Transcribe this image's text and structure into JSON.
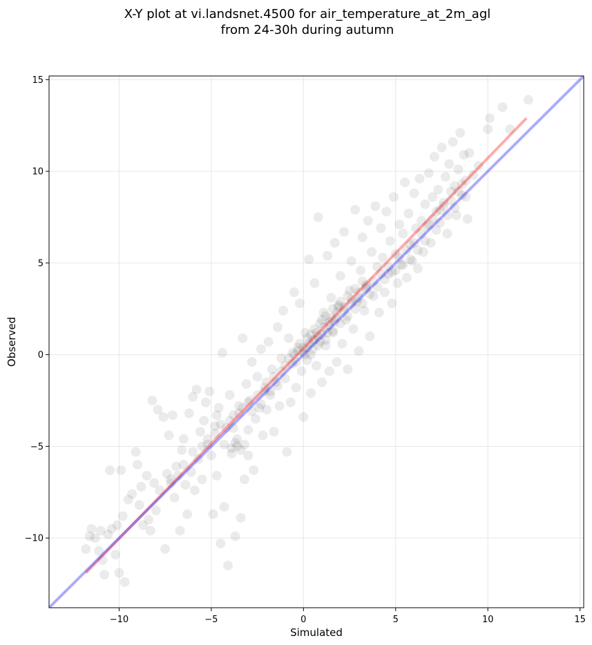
{
  "chart_data": {
    "type": "scatter",
    "title": [
      "X-Y plot at vi.landsnet.4500 for air_temperature_at_2m_agl",
      "from 24-30h during autumn"
    ],
    "xlabel": "Simulated",
    "ylabel": "Observed",
    "xlim": [
      -13.8,
      15.2
    ],
    "ylim": [
      -13.8,
      15.2
    ],
    "xticks": [
      -10,
      -5,
      0,
      5,
      10,
      15
    ],
    "yticks": [
      -10,
      -5,
      0,
      5,
      10,
      15
    ],
    "xtick_labels": [
      "−10",
      "−5",
      "0",
      "5",
      "10",
      "15"
    ],
    "ytick_labels": [
      "−10",
      "−5",
      "0",
      "5",
      "10",
      "15"
    ],
    "grid": true,
    "point_color": "#000000",
    "point_opacity": 0.08,
    "fit_line": {
      "color": "#ff0000",
      "x": [
        -11.8,
        12.1
      ],
      "y": [
        -11.9,
        12.9
      ]
    },
    "identity_line": {
      "color": "#0000ff",
      "x": [
        -13.8,
        15.2
      ],
      "y": [
        -13.8,
        15.2
      ]
    },
    "points": [
      [
        -11.8,
        -10.6
      ],
      [
        -11.6,
        -9.9
      ],
      [
        -11.5,
        -9.5
      ],
      [
        -11.3,
        -10.0
      ],
      [
        -11.1,
        -10.7
      ],
      [
        -11.0,
        -9.6
      ],
      [
        -10.9,
        -11.2
      ],
      [
        -10.8,
        -12.0
      ],
      [
        -10.6,
        -9.8
      ],
      [
        -10.5,
        -6.3
      ],
      [
        -10.4,
        -9.5
      ],
      [
        -10.2,
        -10.9
      ],
      [
        -10.1,
        -9.3
      ],
      [
        -10.0,
        -11.9
      ],
      [
        -9.9,
        -6.3
      ],
      [
        -9.8,
        -8.8
      ],
      [
        -9.7,
        -12.4
      ],
      [
        -9.5,
        -7.9
      ],
      [
        -9.3,
        -7.6
      ],
      [
        -9.1,
        -5.3
      ],
      [
        -9.0,
        -6.0
      ],
      [
        -8.9,
        -8.2
      ],
      [
        -8.8,
        -7.2
      ],
      [
        -8.7,
        -9.3
      ],
      [
        -8.5,
        -6.6
      ],
      [
        -8.4,
        -9.0
      ],
      [
        -8.3,
        -9.6
      ],
      [
        -8.2,
        -2.5
      ],
      [
        -8.1,
        -7.0
      ],
      [
        -8.0,
        -8.5
      ],
      [
        -7.9,
        -3.0
      ],
      [
        -7.8,
        -7.4
      ],
      [
        -7.6,
        -3.4
      ],
      [
        -7.5,
        -10.6
      ],
      [
        -7.4,
        -6.5
      ],
      [
        -7.3,
        -4.4
      ],
      [
        -7.2,
        -6.8
      ],
      [
        -7.1,
        -3.3
      ],
      [
        -7.0,
        -7.8
      ],
      [
        -6.9,
        -6.1
      ],
      [
        -6.7,
        -9.6
      ],
      [
        -6.6,
        -5.2
      ],
      [
        -6.5,
        -4.6
      ],
      [
        -6.4,
        -7.1
      ],
      [
        -6.3,
        -8.7
      ],
      [
        -6.2,
        -3.2
      ],
      [
        -6.1,
        -6.4
      ],
      [
        -6.0,
        -2.3
      ],
      [
        -5.9,
        -7.4
      ],
      [
        -5.8,
        -1.9
      ],
      [
        -5.7,
        -5.7
      ],
      [
        -5.6,
        -4.2
      ],
      [
        -5.5,
        -6.8
      ],
      [
        -5.4,
        -3.6
      ],
      [
        -5.3,
        -2.6
      ],
      [
        -5.2,
        -4.9
      ],
      [
        -5.1,
        -2.0
      ],
      [
        -5.0,
        -5.5
      ],
      [
        -4.9,
        -8.7
      ],
      [
        -4.8,
        -3.9
      ],
      [
        -4.7,
        -6.6
      ],
      [
        -4.6,
        -2.9
      ],
      [
        -4.5,
        -10.3
      ],
      [
        -4.4,
        0.1
      ],
      [
        -4.3,
        -8.3
      ],
      [
        -4.2,
        -4.0
      ],
      [
        -4.1,
        -11.5
      ],
      [
        -4.0,
        -2.2
      ],
      [
        -3.9,
        -5.4
      ],
      [
        -3.8,
        -3.3
      ],
      [
        -3.7,
        -9.9
      ],
      [
        -3.6,
        -4.6
      ],
      [
        -3.5,
        -2.8
      ],
      [
        -3.4,
        -8.9
      ],
      [
        -3.3,
        0.9
      ],
      [
        -3.2,
        -6.8
      ],
      [
        -3.1,
        -1.6
      ],
      [
        -3.0,
        -4.1
      ],
      [
        -2.9,
        -2.5
      ],
      [
        -2.8,
        -0.4
      ],
      [
        -2.7,
        -6.3
      ],
      [
        -2.6,
        -3.5
      ],
      [
        -2.5,
        -1.2
      ],
      [
        -2.4,
        -2.9
      ],
      [
        -2.3,
        0.3
      ],
      [
        -2.2,
        -4.4
      ],
      [
        -2.1,
        -1.8
      ],
      [
        -2.0,
        -3.0
      ],
      [
        -1.9,
        0.7
      ],
      [
        -1.8,
        -2.2
      ],
      [
        -1.7,
        -0.8
      ],
      [
        -1.6,
        -4.2
      ],
      [
        -1.5,
        -1.5
      ],
      [
        -1.4,
        1.5
      ],
      [
        -1.3,
        -2.8
      ],
      [
        -1.2,
        -0.2
      ],
      [
        -1.1,
        2.4
      ],
      [
        -1.0,
        -1.3
      ],
      [
        -0.9,
        -5.3
      ],
      [
        -0.8,
        0.9
      ],
      [
        -0.7,
        -2.6
      ],
      [
        -0.6,
        -0.5
      ],
      [
        -0.5,
        3.4
      ],
      [
        -0.4,
        -1.8
      ],
      [
        -0.3,
        0.4
      ],
      [
        -0.2,
        2.8
      ],
      [
        -0.1,
        -0.9
      ],
      [
        0.0,
        -3.4
      ],
      [
        0.1,
        1.2
      ],
      [
        0.2,
        -0.3
      ],
      [
        0.3,
        5.2
      ],
      [
        0.4,
        -2.1
      ],
      [
        0.5,
        0.8
      ],
      [
        0.6,
        3.9
      ],
      [
        0.7,
        -0.6
      ],
      [
        0.8,
        7.5
      ],
      [
        0.9,
        1.7
      ],
      [
        1.0,
        -1.5
      ],
      [
        1.1,
        2.3
      ],
      [
        1.2,
        0.5
      ],
      [
        1.3,
        5.4
      ],
      [
        1.4,
        -0.9
      ],
      [
        1.5,
        3.1
      ],
      [
        1.6,
        1.2
      ],
      [
        1.7,
        6.1
      ],
      [
        1.8,
        -0.4
      ],
      [
        1.9,
        2.7
      ],
      [
        2.0,
        4.3
      ],
      [
        2.1,
        0.6
      ],
      [
        2.2,
        6.7
      ],
      [
        2.3,
        1.9
      ],
      [
        2.4,
        -0.8
      ],
      [
        2.5,
        3.5
      ],
      [
        2.6,
        5.1
      ],
      [
        2.7,
        1.4
      ],
      [
        2.8,
        7.9
      ],
      [
        2.9,
        2.9
      ],
      [
        3.0,
        0.2
      ],
      [
        3.1,
        4.6
      ],
      [
        3.2,
        6.4
      ],
      [
        3.3,
        2.4
      ],
      [
        3.4,
        3.8
      ],
      [
        3.5,
        7.3
      ],
      [
        3.6,
        1.0
      ],
      [
        3.7,
        5.6
      ],
      [
        3.8,
        3.2
      ],
      [
        3.9,
        8.1
      ],
      [
        4.0,
        4.8
      ],
      [
        4.1,
        2.3
      ],
      [
        4.2,
        6.9
      ],
      [
        4.3,
        5.3
      ],
      [
        4.4,
        3.4
      ],
      [
        4.5,
        7.8
      ],
      [
        4.6,
        4.4
      ],
      [
        4.7,
        6.2
      ],
      [
        4.8,
        2.8
      ],
      [
        4.9,
        8.6
      ],
      [
        5.0,
        5.5
      ],
      [
        5.1,
        3.9
      ],
      [
        5.2,
        7.1
      ],
      [
        5.3,
        4.9
      ],
      [
        5.4,
        6.6
      ],
      [
        5.5,
        9.4
      ],
      [
        5.6,
        4.2
      ],
      [
        5.7,
        7.7
      ],
      [
        5.8,
        6.0
      ],
      [
        5.9,
        5.1
      ],
      [
        6.0,
        8.8
      ],
      [
        6.1,
        6.9
      ],
      [
        6.2,
        4.7
      ],
      [
        6.3,
        9.6
      ],
      [
        6.4,
        7.3
      ],
      [
        6.5,
        5.6
      ],
      [
        6.6,
        8.2
      ],
      [
        6.7,
        7.0
      ],
      [
        6.8,
        9.9
      ],
      [
        6.9,
        6.1
      ],
      [
        7.0,
        8.6
      ],
      [
        7.1,
        10.8
      ],
      [
        7.2,
        6.8
      ],
      [
        7.3,
        9.0
      ],
      [
        7.4,
        7.9
      ],
      [
        7.5,
        11.3
      ],
      [
        7.6,
        8.3
      ],
      [
        7.7,
        9.7
      ],
      [
        7.8,
        6.6
      ],
      [
        7.9,
        10.4
      ],
      [
        8.0,
        8.9
      ],
      [
        8.1,
        11.6
      ],
      [
        8.2,
        9.2
      ],
      [
        8.3,
        7.6
      ],
      [
        8.4,
        10.1
      ],
      [
        8.5,
        12.1
      ],
      [
        8.6,
        8.7
      ],
      [
        8.7,
        10.9
      ],
      [
        8.8,
        9.5
      ],
      [
        8.9,
        7.4
      ],
      [
        9.0,
        11.0
      ],
      [
        9.2,
        9.8
      ],
      [
        9.5,
        10.3
      ],
      [
        10.0,
        12.3
      ],
      [
        10.1,
        12.9
      ],
      [
        10.8,
        13.5
      ],
      [
        11.2,
        12.3
      ],
      [
        12.2,
        13.9
      ],
      [
        -0.5,
        0.0
      ],
      [
        -0.3,
        0.2
      ],
      [
        0.0,
        0.4
      ],
      [
        0.2,
        0.9
      ],
      [
        0.4,
        1.1
      ],
      [
        0.6,
        1.4
      ],
      [
        0.8,
        1.0
      ],
      [
        1.0,
        1.9
      ],
      [
        1.2,
        2.1
      ],
      [
        1.4,
        1.6
      ],
      [
        1.6,
        2.5
      ],
      [
        1.8,
        2.3
      ],
      [
        2.0,
        2.9
      ],
      [
        2.2,
        2.6
      ],
      [
        2.4,
        3.2
      ],
      [
        2.6,
        3.0
      ],
      [
        2.8,
        3.6
      ],
      [
        3.0,
        3.4
      ],
      [
        3.2,
        4.0
      ],
      [
        3.4,
        3.7
      ],
      [
        0.1,
        0.0
      ],
      [
        0.3,
        0.6
      ],
      [
        0.5,
        0.3
      ],
      [
        0.7,
        1.2
      ],
      [
        0.9,
        0.7
      ],
      [
        1.1,
        1.5
      ],
      [
        1.3,
        1.2
      ],
      [
        1.5,
        2.0
      ],
      [
        1.7,
        1.8
      ],
      [
        1.9,
        2.6
      ],
      [
        -1.0,
        -0.6
      ],
      [
        -0.8,
        -0.2
      ],
      [
        -0.6,
        0.1
      ],
      [
        -0.4,
        -0.4
      ],
      [
        -0.2,
        0.6
      ],
      [
        0.0,
        0.1
      ],
      [
        0.2,
        0.4
      ],
      [
        0.4,
        0.0
      ],
      [
        0.6,
        0.8
      ],
      [
        0.8,
        0.5
      ],
      [
        1.0,
        1.1
      ],
      [
        1.2,
        0.8
      ],
      [
        1.4,
        1.8
      ],
      [
        1.6,
        1.3
      ],
      [
        1.8,
        2.0
      ],
      [
        2.0,
        1.7
      ],
      [
        2.2,
        2.4
      ],
      [
        2.4,
        2.1
      ],
      [
        2.6,
        2.8
      ],
      [
        2.8,
        2.5
      ],
      [
        3.0,
        3.1
      ],
      [
        3.2,
        2.8
      ],
      [
        3.4,
        3.6
      ],
      [
        3.6,
        3.3
      ],
      [
        3.8,
        4.0
      ],
      [
        4.0,
        3.7
      ],
      [
        4.2,
        4.4
      ],
      [
        4.4,
        4.1
      ],
      [
        4.6,
        4.8
      ],
      [
        4.8,
        4.5
      ],
      [
        -2.0,
        -1.5
      ],
      [
        -1.8,
        -2.0
      ],
      [
        -1.6,
        -1.2
      ],
      [
        -1.4,
        -1.7
      ],
      [
        -1.2,
        -0.9
      ],
      [
        -2.5,
        -2.2
      ],
      [
        -2.3,
        -2.7
      ],
      [
        -2.1,
        -2.0
      ],
      [
        -3.0,
        -2.6
      ],
      [
        -2.8,
        -3.1
      ],
      [
        -3.5,
        -3.2
      ],
      [
        -3.3,
        -2.9
      ],
      [
        -4.0,
        -3.6
      ],
      [
        -3.8,
        -4.0
      ],
      [
        -3.6,
        -5.0
      ],
      [
        -3.4,
        -5.2
      ],
      [
        -3.2,
        -4.9
      ],
      [
        -3.0,
        -5.5
      ],
      [
        -3.7,
        -4.8
      ],
      [
        -3.9,
        -5.1
      ],
      [
        5.0,
        4.6
      ],
      [
        5.2,
        5.3
      ],
      [
        5.4,
        4.9
      ],
      [
        5.6,
        5.7
      ],
      [
        5.8,
        5.2
      ],
      [
        6.0,
        6.1
      ],
      [
        6.2,
        5.7
      ],
      [
        6.4,
        6.6
      ],
      [
        6.6,
        6.2
      ],
      [
        6.8,
        7.1
      ],
      [
        7.0,
        7.4
      ],
      [
        7.2,
        7.8
      ],
      [
        7.4,
        7.2
      ],
      [
        7.6,
        8.1
      ],
      [
        7.8,
        7.6
      ],
      [
        8.0,
        8.4
      ],
      [
        8.2,
        8.0
      ],
      [
        8.4,
        8.9
      ],
      [
        8.6,
        9.3
      ],
      [
        8.8,
        8.6
      ],
      [
        -6.5,
        -6.0
      ],
      [
        -6.8,
        -6.6
      ],
      [
        -7.2,
        -7.0
      ],
      [
        -6.0,
        -5.3
      ],
      [
        -5.5,
        -5.0
      ],
      [
        -5.2,
        -4.6
      ],
      [
        -4.8,
        -4.3
      ],
      [
        -4.5,
        -3.8
      ],
      [
        -4.3,
        -4.9
      ],
      [
        -4.7,
        -3.3
      ]
    ]
  }
}
